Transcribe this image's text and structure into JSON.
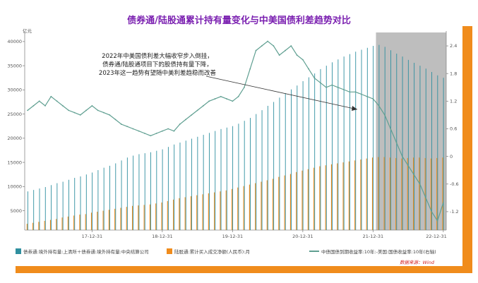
{
  "title": "债券通/陆股通累计持有量变化与中美国债利差趋势对比",
  "annotation": [
    "2022年中美国债利差大幅收窄步入倒挂，",
    "债券通/陆股通项目下的股债持有量下降，",
    "2023年这一趋势有望随中美利差趋稳而改善"
  ],
  "source": "数据来源：Wind",
  "colors": {
    "title": "#7a1fb0",
    "bond_bars": "#2f8f9f",
    "stock_bars": "#f08c1c",
    "spread_line": "#5f9f91",
    "shade": "#a8a8a8",
    "frame_orange": "#f08c1c",
    "source_text": "#d21f1f"
  },
  "chart_data": {
    "type": "bar",
    "left_axis_unit": "亿元",
    "left_ticks": [
      "5000",
      "10000",
      "15000",
      "20000",
      "25000",
      "30000",
      "35000",
      "40000"
    ],
    "right_ticks": [
      "-1.2",
      "-0.6",
      "0",
      "0.6",
      "1.2",
      "1.8",
      "2.4"
    ],
    "x_ticks": [
      "17-12-31",
      "18-12-31",
      "19-12-31",
      "20-12-31",
      "21-12-31",
      "22-12-31"
    ],
    "ylim_left": [
      1000,
      41000
    ],
    "ylim_right": [
      -1.6,
      2.6
    ],
    "shaded_period": [
      "22-01",
      "22-12"
    ],
    "legend": [
      "债券通:境外持有量:上清所＋债券通:境外持有量:中央结算公司",
      "陆股通:累计买入成交净额(人民币):月",
      "中债国债到期收益率:10年:-美国:国债收益率:10年(右轴)"
    ],
    "months": [
      "17-01",
      "17-02",
      "17-03",
      "17-04",
      "17-05",
      "17-06",
      "17-07",
      "17-08",
      "17-09",
      "17-10",
      "17-11",
      "17-12",
      "18-01",
      "18-02",
      "18-03",
      "18-04",
      "18-05",
      "18-06",
      "18-07",
      "18-08",
      "18-09",
      "18-10",
      "18-11",
      "18-12",
      "19-01",
      "19-02",
      "19-03",
      "19-04",
      "19-05",
      "19-06",
      "19-07",
      "19-08",
      "19-09",
      "19-10",
      "19-11",
      "19-12",
      "20-01",
      "20-02",
      "20-03",
      "20-04",
      "20-05",
      "20-06",
      "20-07",
      "20-08",
      "20-09",
      "20-10",
      "20-11",
      "20-12",
      "21-01",
      "21-02",
      "21-03",
      "21-04",
      "21-05",
      "21-06",
      "21-07",
      "21-08",
      "21-09",
      "21-10",
      "21-11",
      "21-12",
      "22-01",
      "22-02",
      "22-03",
      "22-04",
      "22-05",
      "22-06",
      "22-07",
      "22-08",
      "22-09",
      "22-10",
      "22-11",
      "22-12"
    ],
    "series": [
      {
        "name": "债券通:境外持有量:上清所＋债券通:境外持有量:中央结算公司",
        "axis": "left",
        "kind": "bar",
        "values": [
          9000,
          9300,
          9600,
          9900,
          10300,
          10700,
          11000,
          11400,
          11800,
          12100,
          12500,
          12900,
          13400,
          13900,
          14300,
          14800,
          15400,
          16000,
          16400,
          16700,
          16900,
          17100,
          17400,
          17700,
          18200,
          18700,
          19100,
          19500,
          19900,
          20300,
          20700,
          21100,
          21500,
          21900,
          22200,
          22500,
          23000,
          23600,
          24200,
          25000,
          25800,
          26700,
          27500,
          28400,
          29300,
          30100,
          30900,
          31800,
          32600,
          33400,
          34300,
          35000,
          35700,
          36300,
          36900,
          37400,
          37900,
          38300,
          38700,
          39100,
          39300,
          38900,
          38200,
          37500,
          36900,
          36200,
          35600,
          35000,
          34400,
          33700,
          33000,
          32500
        ]
      },
      {
        "name": "陆股通:累计买入成交净额(人民币):月",
        "axis": "left",
        "kind": "bar",
        "values": [
          2300,
          2500,
          2700,
          2900,
          3100,
          3300,
          3600,
          3800,
          4000,
          4200,
          4300,
          4600,
          4800,
          5000,
          5200,
          5400,
          5600,
          5800,
          6000,
          6100,
          6200,
          6300,
          6500,
          6700,
          7000,
          7300,
          7600,
          7800,
          8000,
          8200,
          8400,
          8600,
          8800,
          9000,
          9200,
          9500,
          9800,
          10100,
          10400,
          10700,
          11000,
          11300,
          11600,
          12000,
          12300,
          12600,
          13000,
          13300,
          13600,
          13900,
          14200,
          14400,
          14600,
          14800,
          15000,
          15200,
          15400,
          15600,
          15800,
          16000,
          16100,
          16100,
          16000,
          15900,
          15800,
          15900,
          16000,
          16000,
          15900,
          15800,
          15900,
          16000
        ]
      },
      {
        "name": "中债国债到期收益率:10年:-美国:国债收益率:10年(右轴)",
        "axis": "right",
        "kind": "line",
        "values": [
          1.0,
          1.1,
          1.2,
          1.1,
          1.3,
          1.2,
          1.1,
          1.0,
          0.95,
          0.9,
          1.0,
          1.1,
          1.0,
          0.95,
          0.9,
          0.8,
          0.7,
          0.65,
          0.6,
          0.55,
          0.5,
          0.45,
          0.5,
          0.55,
          0.6,
          0.55,
          0.7,
          0.8,
          0.9,
          1.0,
          1.1,
          1.2,
          1.25,
          1.3,
          1.25,
          1.2,
          1.3,
          1.5,
          1.9,
          2.3,
          2.4,
          2.5,
          2.4,
          2.2,
          2.3,
          2.4,
          2.2,
          2.1,
          1.9,
          1.7,
          1.6,
          1.5,
          1.55,
          1.5,
          1.45,
          1.4,
          1.4,
          1.35,
          1.3,
          1.25,
          1.1,
          0.9,
          0.6,
          0.3,
          0.0,
          -0.2,
          -0.4,
          -0.6,
          -0.9,
          -1.2,
          -1.4,
          -1.0
        ]
      }
    ]
  }
}
